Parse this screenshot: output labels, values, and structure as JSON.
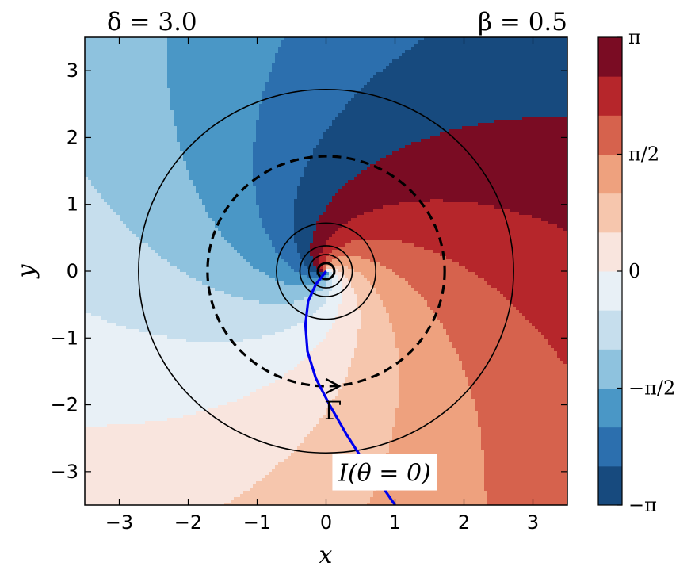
{
  "chart_data": {
    "type": "heatmap",
    "title_left": "δ = 3.0",
    "title_right": "β = 0.5",
    "xlabel": "x",
    "ylabel": "y",
    "xlim": [
      -3.5,
      3.5
    ],
    "ylim": [
      -3.5,
      3.5
    ],
    "xticks": [
      -3,
      -2,
      -1,
      0,
      1,
      2,
      3
    ],
    "yticks": [
      -3,
      -2,
      -1,
      0,
      1,
      2,
      3
    ],
    "xtick_labels": [
      "−3",
      "−2",
      "−1",
      "0",
      "1",
      "2",
      "3"
    ],
    "ytick_labels": [
      "−3",
      "−2",
      "−1",
      "0",
      "1",
      "2",
      "3"
    ],
    "phase_field": {
      "delta": 3.0,
      "beta": 0.5,
      "range": [
        -3.14159,
        3.14159
      ],
      "levels": 12
    },
    "colorbar": {
      "colors": [
        "#174a7e",
        "#2c6fae",
        "#4a97c6",
        "#8ec2de",
        "#c6deed",
        "#e8f0f6",
        "#f9e5de",
        "#f6c6ad",
        "#eea17e",
        "#d6624d",
        "#b6262b",
        "#7a0c23"
      ],
      "ticks": [
        -3.14159,
        -1.5708,
        0,
        1.5708,
        3.14159
      ],
      "tick_labels": [
        "−π",
        "−π/2",
        "0",
        "π/2",
        "π"
      ]
    },
    "circles": [
      {
        "r": 0.12,
        "style": "solid",
        "width": 3
      },
      {
        "r": 0.25,
        "style": "solid",
        "width": 1.6
      },
      {
        "r": 0.38,
        "style": "solid",
        "width": 1.6
      },
      {
        "r": 0.72,
        "style": "solid",
        "width": 1.6
      },
      {
        "r": 1.72,
        "style": "dashed",
        "width": 3.2
      },
      {
        "r": 2.72,
        "style": "solid",
        "width": 1.6
      }
    ],
    "curve": {
      "label": "I(θ = 0)",
      "color": "#0000ee",
      "points": [
        [
          0,
          0
        ],
        [
          -0.15,
          -0.2
        ],
        [
          -0.26,
          -0.45
        ],
        [
          -0.3,
          -0.8
        ],
        [
          -0.27,
          -1.2
        ],
        [
          -0.15,
          -1.6
        ],
        [
          0.05,
          -2.0
        ],
        [
          0.3,
          -2.45
        ],
        [
          0.55,
          -2.85
        ],
        [
          0.8,
          -3.2
        ],
        [
          1.0,
          -3.5
        ]
      ],
      "label_at": [
        0.85,
        -3.02
      ]
    },
    "contour_label": {
      "text": "Γ",
      "at": [
        0.1,
        -2.05
      ]
    },
    "arrow_at": [
      0.1,
      -1.72
    ]
  }
}
